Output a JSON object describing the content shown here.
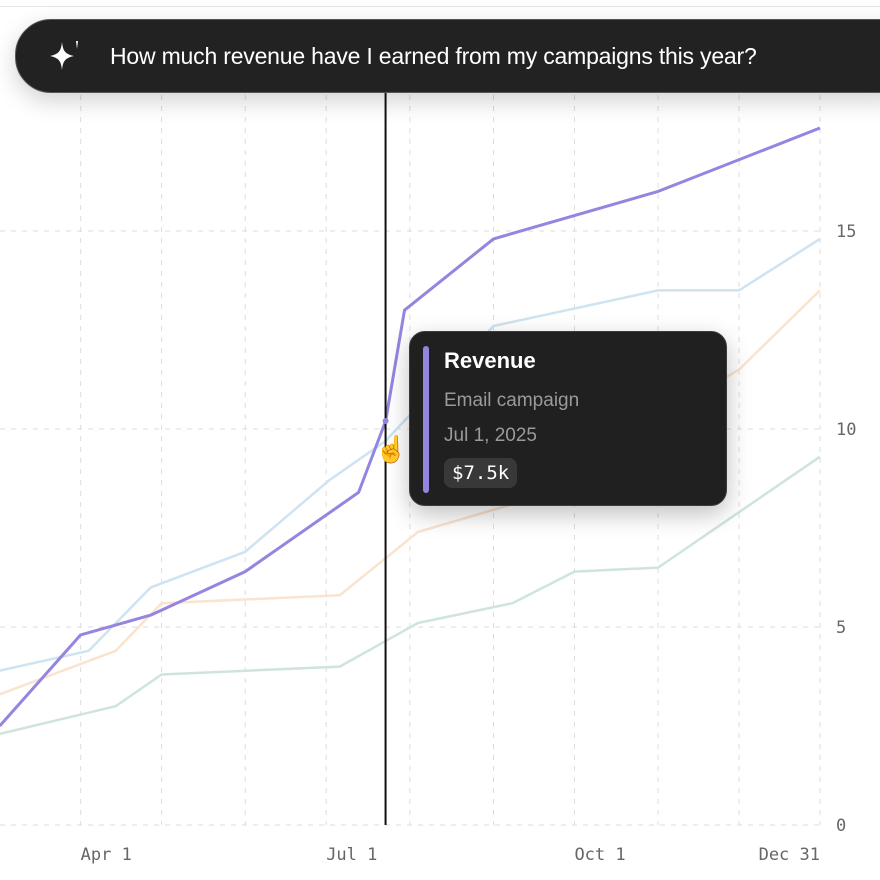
{
  "prompt": {
    "text": "How much revenue have I earned from my campaigns this year?",
    "icon": "sparkle-icon"
  },
  "tooltip": {
    "title": "Revenue",
    "series": "Email campaign",
    "date": "Jul 1, 2025",
    "value": "$7.5k",
    "accent": "#9584e0"
  },
  "chart_data": {
    "type": "line",
    "x_ticks": [
      "Apr 1",
      "Jul 1",
      "Oct 1",
      "Dec 31"
    ],
    "y_ticks": [
      "0",
      "5",
      "10",
      "15"
    ],
    "xlim": [
      "2025-03-01",
      "2025-12-31"
    ],
    "ylim": [
      0,
      20
    ],
    "grid": true,
    "crosshair_date": "2025-07-23",
    "series": [
      {
        "color": "#9584e0",
        "emphasis": true,
        "points": [
          [
            "2025-03-02",
            2.5
          ],
          [
            "2025-04-01",
            4.8
          ],
          [
            "2025-04-27",
            5.3
          ],
          [
            "2025-06-01",
            6.4
          ],
          [
            "2025-07-13",
            8.4
          ],
          [
            "2025-07-23",
            10.2
          ],
          [
            "2025-07-30",
            13.0
          ],
          [
            "2025-09-01",
            14.8
          ],
          [
            "2025-11-01",
            16.0
          ],
          [
            "2025-12-31",
            17.6
          ]
        ]
      },
      {
        "color": "#cfe3f1",
        "points": [
          [
            "2025-03-02",
            3.9
          ],
          [
            "2025-04-04",
            4.4
          ],
          [
            "2025-04-27",
            6.0
          ],
          [
            "2025-06-01",
            6.9
          ],
          [
            "2025-07-02",
            8.7
          ],
          [
            "2025-07-23",
            9.7
          ],
          [
            "2025-09-01",
            12.6
          ],
          [
            "2025-11-01",
            13.5
          ],
          [
            "2025-12-01",
            13.5
          ],
          [
            "2025-12-31",
            14.8
          ]
        ]
      },
      {
        "color": "#fae3cf",
        "points": [
          [
            "2025-03-02",
            3.3
          ],
          [
            "2025-04-14",
            4.4
          ],
          [
            "2025-05-01",
            5.6
          ],
          [
            "2025-07-06",
            5.8
          ],
          [
            "2025-08-04",
            7.4
          ],
          [
            "2025-09-08",
            8.1
          ],
          [
            "2025-12-01",
            11.5
          ],
          [
            "2025-12-31",
            13.5
          ]
        ]
      },
      {
        "color": "#cfe5db",
        "points": [
          [
            "2025-03-02",
            2.3
          ],
          [
            "2025-04-14",
            3.0
          ],
          [
            "2025-05-01",
            3.8
          ],
          [
            "2025-07-06",
            4.0
          ],
          [
            "2025-08-04",
            5.1
          ],
          [
            "2025-09-08",
            5.6
          ],
          [
            "2025-10-01",
            6.4
          ],
          [
            "2025-11-01",
            6.5
          ],
          [
            "2025-12-31",
            9.3
          ]
        ]
      }
    ]
  }
}
